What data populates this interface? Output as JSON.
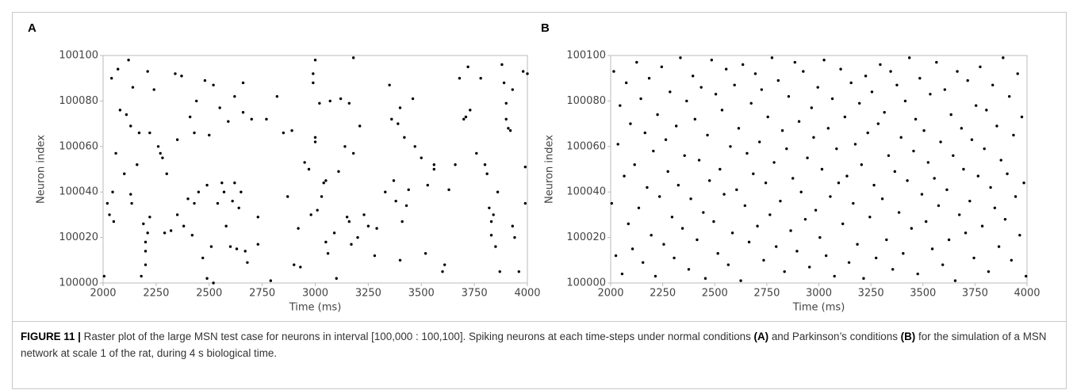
{
  "chart_data": [
    {
      "type": "scatter",
      "title": "A",
      "xlabel": "Time (ms)",
      "ylabel": "Neuron index",
      "color": "#000000",
      "xlim": [
        2000,
        4000
      ],
      "ylim": [
        100000,
        100100
      ],
      "xticks": [
        2000,
        2250,
        2500,
        2750,
        3000,
        3250,
        3500,
        3750,
        4000
      ],
      "yticks": [
        100000,
        100020,
        100040,
        100060,
        100080,
        100100
      ],
      "x": [
        2005,
        2020,
        2030,
        2040,
        2045,
        2050,
        2060,
        2070,
        2080,
        2100,
        2110,
        2120,
        2130,
        2130,
        2135,
        2140,
        2160,
        2170,
        2180,
        2190,
        2200,
        2200,
        2200,
        2210,
        2210,
        2220,
        2220,
        2240,
        2260,
        2270,
        2280,
        2290,
        2300,
        2320,
        2340,
        2350,
        2350,
        2370,
        2380,
        2400,
        2410,
        2420,
        2430,
        2430,
        2440,
        2450,
        2470,
        2480,
        2490,
        2490,
        2500,
        2510,
        2520,
        2520,
        2540,
        2550,
        2560,
        2570,
        2580,
        2590,
        2600,
        2610,
        2620,
        2620,
        2630,
        2640,
        2650,
        2660,
        2660,
        2670,
        2680,
        2700,
        2730,
        2730,
        2770,
        2790,
        2820,
        2850,
        2870,
        2890,
        2900,
        2920,
        2930,
        2950,
        2970,
        2980,
        2990,
        2990,
        3000,
        3000,
        3000,
        3010,
        3020,
        3030,
        3040,
        3050,
        3050,
        3060,
        3070,
        3090,
        3100,
        3110,
        3120,
        3140,
        3150,
        3160,
        3160,
        3180,
        3170,
        3180,
        3200,
        3210,
        3230,
        3250,
        3280,
        3290,
        3330,
        3350,
        3360,
        3370,
        3380,
        3390,
        3400,
        3400,
        3410,
        3420,
        3430,
        3440,
        3460,
        3470,
        3500,
        3520,
        3530,
        3560,
        3560,
        3600,
        3610,
        3630,
        3660,
        3680,
        3700,
        3710,
        3720,
        3730,
        3760,
        3780,
        3800,
        3810,
        3820,
        3830,
        3830,
        3840,
        3850,
        3860,
        3870,
        3880,
        3890,
        3900,
        3900,
        3910,
        3920,
        3930,
        3930,
        3940,
        3960,
        3990,
        3990,
        3980,
        4000
      ],
      "values": [
        100003,
        100035,
        100030,
        100090,
        100040,
        100027,
        100057,
        100094,
        100076,
        100048,
        100074,
        100098,
        100069,
        100039,
        100035,
        100086,
        100052,
        100066,
        100003,
        100026,
        100014,
        100008,
        100018,
        100022,
        100093,
        100029,
        100066,
        100085,
        100060,
        100057,
        100055,
        100022,
        100048,
        100023,
        100092,
        100030,
        100063,
        100091,
        100025,
        100037,
        100073,
        100021,
        100035,
        100066,
        100080,
        100040,
        100011,
        100089,
        100043,
        100002,
        100065,
        100016,
        100087,
        100000,
        100035,
        100077,
        100044,
        100040,
        100025,
        100071,
        100016,
        100036,
        100082,
        100044,
        100015,
        100033,
        100040,
        100088,
        100075,
        100014,
        100009,
        100072,
        100029,
        100017,
        100072,
        100001,
        100082,
        100066,
        100038,
        100067,
        100008,
        100024,
        100007,
        100053,
        100050,
        100030,
        100088,
        100092,
        100098,
        100064,
        100062,
        100032,
        100079,
        100038,
        100044,
        100045,
        100018,
        100013,
        100080,
        100022,
        100002,
        100049,
        100081,
        100060,
        100029,
        100027,
        100079,
        100057,
        100017,
        100099,
        100020,
        100069,
        100030,
        100025,
        100012,
        100024,
        100040,
        100087,
        100072,
        100045,
        100036,
        100070,
        100010,
        100077,
        100027,
        100064,
        100034,
        100041,
        100081,
        100060,
        100055,
        100013,
        100043,
        100052,
        100050,
        100005,
        100008,
        100041,
        100052,
        100090,
        100072,
        100073,
        100095,
        100076,
        100057,
        100090,
        100052,
        100048,
        100033,
        100027,
        100021,
        100030,
        100016,
        100040,
        100005,
        100096,
        100088,
        100072,
        100079,
        100068,
        100067,
        100025,
        100085,
        100020,
        100005,
        100051,
        100035,
        100093,
        100092
      ]
    },
    {
      "type": "scatter",
      "title": "B",
      "xlabel": "Time (ms)",
      "ylabel": "Neuron index",
      "color": "#000000",
      "xlim": [
        2000,
        4000
      ],
      "ylim": [
        100000,
        100100
      ],
      "xticks": [
        2000,
        2250,
        2500,
        2750,
        3000,
        3250,
        3500,
        3750,
        4000
      ],
      "yticks": [
        100000,
        100020,
        100040,
        100060,
        100080,
        100100
      ],
      "x": [
        2005,
        2015,
        2025,
        2035,
        2045,
        2055,
        2065,
        2075,
        2085,
        2095,
        2105,
        2115,
        2125,
        2135,
        2145,
        2155,
        2165,
        2175,
        2185,
        2195,
        2205,
        2215,
        2225,
        2235,
        2245,
        2255,
        2265,
        2275,
        2285,
        2295,
        2305,
        2315,
        2325,
        2335,
        2345,
        2355,
        2365,
        2375,
        2385,
        2395,
        2405,
        2415,
        2425,
        2435,
        2445,
        2455,
        2465,
        2475,
        2485,
        2495,
        2505,
        2515,
        2525,
        2535,
        2545,
        2555,
        2565,
        2575,
        2585,
        2595,
        2605,
        2615,
        2625,
        2635,
        2645,
        2655,
        2665,
        2675,
        2685,
        2695,
        2705,
        2715,
        2725,
        2735,
        2745,
        2755,
        2765,
        2775,
        2785,
        2795,
        2805,
        2815,
        2825,
        2835,
        2845,
        2855,
        2865,
        2875,
        2885,
        2895,
        2905,
        2915,
        2925,
        2935,
        2945,
        2955,
        2965,
        2975,
        2985,
        2995,
        3005,
        3015,
        3025,
        3035,
        3045,
        3055,
        3065,
        3075,
        3085,
        3095,
        3105,
        3115,
        3125,
        3135,
        3145,
        3155,
        3165,
        3175,
        3185,
        3195,
        3205,
        3215,
        3225,
        3235,
        3245,
        3255,
        3265,
        3275,
        3285,
        3295,
        3305,
        3315,
        3325,
        3335,
        3345,
        3355,
        3365,
        3375,
        3385,
        3395,
        3405,
        3415,
        3425,
        3435,
        3445,
        3455,
        3465,
        3475,
        3485,
        3495,
        3505,
        3515,
        3525,
        3535,
        3545,
        3555,
        3565,
        3575,
        3585,
        3595,
        3605,
        3615,
        3625,
        3635,
        3645,
        3655,
        3665,
        3675,
        3685,
        3695,
        3705,
        3715,
        3725,
        3735,
        3745,
        3755,
        3765,
        3775,
        3785,
        3795,
        3805,
        3815,
        3825,
        3835,
        3845,
        3855,
        3865,
        3875,
        3885,
        3895,
        3905,
        3915,
        3925,
        3935,
        3945,
        3955,
        3965,
        3975,
        3985,
        3995
      ],
      "values": [
        100035,
        100093,
        100012,
        100061,
        100078,
        100004,
        100047,
        100088,
        100026,
        100070,
        100015,
        100052,
        100097,
        100033,
        100081,
        100009,
        100066,
        100042,
        100090,
        100021,
        100058,
        100003,
        100074,
        100038,
        100095,
        100017,
        100063,
        100049,
        100084,
        100029,
        100011,
        100069,
        100043,
        100099,
        100024,
        100056,
        100080,
        100006,
        100037,
        100091,
        100072,
        100019,
        100054,
        100086,
        100031,
        100002,
        100065,
        100045,
        100098,
        100027,
        100083,
        100013,
        100050,
        100076,
        100039,
        100094,
        100008,
        100060,
        100022,
        100087,
        100041,
        100068,
        100001,
        100096,
        100034,
        100057,
        100018,
        100079,
        100048,
        100092,
        100025,
        100062,
        100085,
        100010,
        100044,
        100073,
        100030,
        100099,
        100053,
        100016,
        100089,
        100036,
        100067,
        100005,
        100059,
        100082,
        100023,
        100046,
        100097,
        100014,
        100071,
        100040,
        100093,
        100028,
        100055,
        100007,
        100077,
        100064,
        100032,
        100086,
        100020,
        100050,
        100098,
        100012,
        100068,
        100038,
        100081,
        100003,
        100059,
        100044,
        100094,
        100026,
        100073,
        100047,
        100009,
        100088,
        100035,
        100061,
        100017,
        100079,
        100052,
        100002,
        100091,
        100066,
        100029,
        100084,
        100043,
        100011,
        100070,
        100096,
        100037,
        100075,
        100019,
        100056,
        100093,
        100006,
        100049,
        100087,
        100031,
        100064,
        100013,
        100080,
        100045,
        100099,
        100024,
        100058,
        100072,
        100004,
        100090,
        100039,
        100067,
        100027,
        100053,
        100083,
        100015,
        100046,
        100097,
        100034,
        100062,
        100008,
        100085,
        100041,
        100019,
        100074,
        100056,
        100001,
        100093,
        100030,
        100068,
        100050,
        100022,
        100089,
        100036,
        100063,
        100011,
        100078,
        100047,
        100095,
        100025,
        100059,
        100076,
        100005,
        100042,
        100087,
        100033,
        100069,
        100016,
        100054,
        100099,
        100028,
        100048,
        100082,
        100010,
        100065,
        100038,
        100092,
        100021,
        100073,
        100044,
        100003
      ]
    }
  ],
  "caption": {
    "label": "FIGURE 11 |",
    "text1": "Raster plot of the large MSN test case for neurons in interval [100,000 : 100,100]. Spiking neurons at each time-steps under normal conditions",
    "ref_a": "(A)",
    "text2": "and Parkinson’s conditions",
    "ref_b": "(B)",
    "text3": "for the simulation of a MSN network at scale 1 of the rat, during 4 s biological time."
  }
}
